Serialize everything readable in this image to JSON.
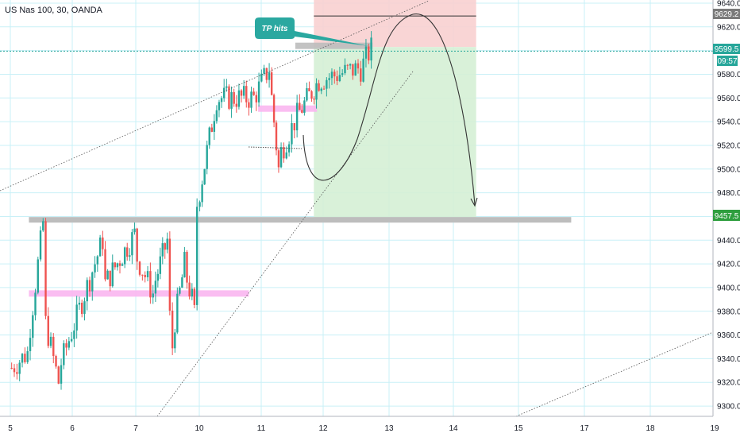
{
  "header": {
    "symbol_title": "US Nas 100, 30, OANDA"
  },
  "colors": {
    "grid": "#c9f0f7",
    "candle_up": "#26a69a",
    "candle_down": "#ef5350",
    "target_zone": "#d5f0d5",
    "stop_zone": "#f8d0d0",
    "support_band": "#bdbdbd",
    "highlight_band": "#f9b6f0",
    "callout": "#2aa8a0",
    "price_line": "#26a69a",
    "current_label": "#26a69a",
    "target_label": "#2e9e3e",
    "stop_label": "#7a7a7a",
    "trendline": "#555555",
    "axis_text": "#131722"
  },
  "annotations": {
    "callout_text": "TP hits"
  },
  "chart_data": {
    "type": "candlestick",
    "title": "US Nas 100, 30, OANDA",
    "x_tick_labels": [
      "5",
      "6",
      "7",
      "10",
      "11",
      "12",
      "13",
      "14",
      "15",
      "17",
      "18",
      "19"
    ],
    "y_ticks": [
      9300.0,
      9320.0,
      9340.0,
      9360.0,
      9380.0,
      9400.0,
      9420.0,
      9440.0,
      9460.0,
      9480.0,
      9500.0,
      9520.0,
      9540.0,
      9560.0,
      9580.0,
      9600.0,
      9620.0,
      9640.0
    ],
    "ylim": [
      9292,
      9642
    ],
    "grid": true,
    "price_labels": {
      "stop": "9629.2",
      "current": "9599.5",
      "countdown": "09:57",
      "target": "9457.5"
    },
    "levels": {
      "current": 9599.5,
      "stop": 9629.2,
      "target": 9457.5,
      "entry": 9603
    },
    "position_zone": {
      "x_start": 11.85,
      "x_end": 14.35,
      "top": 9643,
      "entry": 9603,
      "bottom": 9457.5
    },
    "support_band": {
      "x_start": 5.3,
      "x_end": 16.6,
      "value": 9457.5
    },
    "highlight_bands": [
      {
        "x_start": 5.3,
        "x_end": 10.8,
        "value": 9395
      },
      {
        "x_start": 10.95,
        "x_end": 11.9,
        "value": 9551
      }
    ],
    "resistance_band": {
      "x_start": 11.55,
      "x_end": 12.75,
      "value": 9604
    },
    "candles_segments": [
      {
        "from_x": 5.0,
        "to_x": 5.3,
        "from": 9330,
        "to": 9345
      },
      {
        "from_x": 5.3,
        "to_x": 5.55,
        "from": 9350,
        "to": 9455
      },
      {
        "from_x": 5.55,
        "to_x": 5.8,
        "from": 9380,
        "to": 9320
      },
      {
        "from_x": 5.8,
        "to_x": 6.5,
        "from": 9330,
        "to": 9440
      },
      {
        "from_x": 6.5,
        "to_x": 7.0,
        "from": 9400,
        "to": 9445
      },
      {
        "from_x": 7.0,
        "to_x": 7.6,
        "from": 9430,
        "to": 9395
      },
      {
        "from_x": 7.6,
        "to_x": 8.1,
        "from": 9400,
        "to": 9440
      },
      {
        "from_x": 8.1,
        "to_x": 8.4,
        "from": 9400,
        "to": 9350
      },
      {
        "from_x": 8.4,
        "to_x": 9.1,
        "from": 9360,
        "to": 9420
      },
      {
        "from_x": 9.1,
        "to_x": 9.6,
        "from": 9415,
        "to": 9390
      },
      {
        "from_x": 9.6,
        "to_x": 9.75,
        "from": 9385,
        "to": 9378
      },
      {
        "from_x": 9.75,
        "to_x": 9.95,
        "from": 9380,
        "to": 9470
      },
      {
        "from_x": 9.95,
        "to_x": 10.3,
        "from": 9470,
        "to": 9560
      },
      {
        "from_x": 10.3,
        "to_x": 10.9,
        "from": 9560,
        "to": 9560
      },
      {
        "from_x": 10.9,
        "to_x": 11.15,
        "from": 9560,
        "to": 9585
      },
      {
        "from_x": 11.15,
        "to_x": 11.3,
        "from": 9580,
        "to": 9500
      },
      {
        "from_x": 11.3,
        "to_x": 11.6,
        "from": 9510,
        "to": 9545
      },
      {
        "from_x": 11.6,
        "to_x": 11.95,
        "from": 9545,
        "to": 9575
      },
      {
        "from_x": 11.95,
        "to_x": 12.55,
        "from": 9575,
        "to": 9585
      },
      {
        "from_x": 12.55,
        "to_x": 12.75,
        "from": 9580,
        "to": 9602
      }
    ]
  }
}
